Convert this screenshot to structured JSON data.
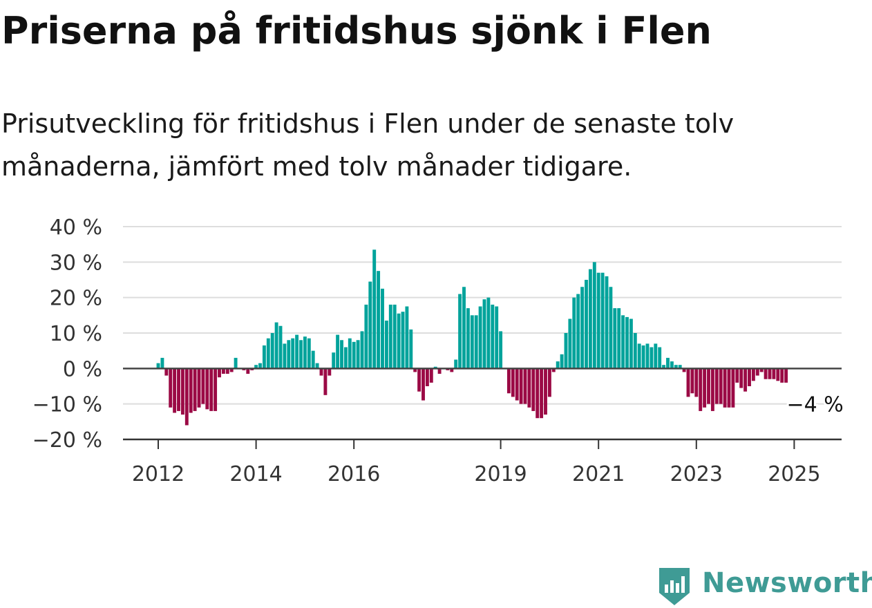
{
  "header": {
    "title": "Priserna på fritidshus sjönk i Flen",
    "subtitle": "Prisutveckling för fritidshus i Flen under de senaste tolv månaderna, jämfört med tolv månader tidigare."
  },
  "brand": {
    "name": "Newsworthy",
    "color": "#3f9b95",
    "icon": "newsworthy-logo-icon"
  },
  "chart_data": {
    "type": "bar",
    "title": "",
    "xlabel": "",
    "ylabel": "",
    "ylim": [
      -20,
      40
    ],
    "y_ticks": [
      {
        "value": 40,
        "label": "40 %"
      },
      {
        "value": 30,
        "label": "30 %"
      },
      {
        "value": 20,
        "label": "20 %"
      },
      {
        "value": 10,
        "label": "10 %"
      },
      {
        "value": 0,
        "label": "0 %"
      },
      {
        "value": -10,
        "label": "−10 %"
      },
      {
        "value": -20,
        "label": "−20 %"
      }
    ],
    "x_ticks": [
      {
        "year": 2012,
        "label": "2012"
      },
      {
        "year": 2014,
        "label": "2014"
      },
      {
        "year": 2016,
        "label": "2016"
      },
      {
        "year": 2019,
        "label": "2019"
      },
      {
        "year": 2021,
        "label": "2021"
      },
      {
        "year": 2023,
        "label": "2023"
      },
      {
        "year": 2025,
        "label": "2025"
      }
    ],
    "grid": true,
    "legend": "none",
    "colors": {
      "positive": "#00a39b",
      "negative": "#9b0a45",
      "grid": "#dddddd",
      "axis": "#444444"
    },
    "start_year": 2012,
    "start_month": 1,
    "values": [
      1.5,
      3,
      -2,
      -11,
      -12.5,
      -12,
      -13,
      -16,
      -12.5,
      -12,
      -11,
      -10,
      -11.5,
      -12,
      -12,
      -2.5,
      -1.5,
      -1.5,
      -1,
      3,
      0,
      -0.5,
      -1.5,
      -0.5,
      1,
      1.5,
      6.5,
      8.5,
      10,
      13,
      12,
      7,
      8,
      8.5,
      9.5,
      8,
      9,
      8.5,
      5,
      1.5,
      -2,
      -7.5,
      -2,
      4.5,
      9.5,
      8,
      6,
      8.5,
      7.5,
      8,
      10.5,
      18,
      24.5,
      33.5,
      27.5,
      22.5,
      13.5,
      18,
      18,
      15.5,
      16,
      17.5,
      11,
      -1,
      -6.5,
      -9,
      -5,
      -4,
      0.5,
      -1.5,
      0,
      -0.5,
      -1,
      2.5,
      21,
      23,
      17,
      15,
      15,
      17.5,
      19.5,
      20,
      18,
      17.5,
      10.5,
      0,
      -7,
      -8,
      -9,
      -10,
      -10,
      -11,
      -12,
      -14,
      -14,
      -13,
      -8,
      -1,
      2,
      4,
      10,
      14,
      20,
      21,
      23,
      25,
      28,
      30,
      27,
      27,
      26,
      23,
      17,
      17,
      15,
      14.5,
      14,
      10,
      7,
      6.5,
      7,
      6,
      7,
      6,
      1,
      3,
      2,
      1,
      1,
      -1,
      -8,
      -7,
      -8,
      -12,
      -11,
      -10,
      -12,
      -10,
      -10,
      -11,
      -11,
      -11,
      -4,
      -5.5,
      -6.5,
      -5,
      -3.5,
      -2,
      -1,
      -3,
      -3,
      -3,
      -3.5,
      -4,
      -4
    ],
    "annotation": {
      "label": "−4 %",
      "value": -4
    }
  }
}
